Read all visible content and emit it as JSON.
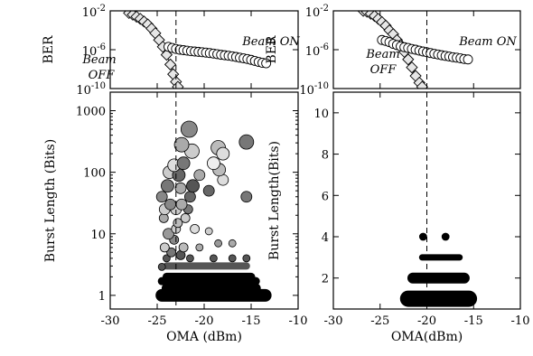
{
  "chart_data": [
    {
      "panel": "left-top",
      "type": "line",
      "ylabel": "BER",
      "yscale": "log",
      "xlim": [
        -30,
        -10
      ],
      "ylim": [
        1e-10,
        0.01
      ],
      "yticks": [
        1e-10,
        1e-06,
        0.01
      ],
      "ytick_labels": [
        {
          "base": "10",
          "exp": "-10"
        },
        {
          "base": "10",
          "exp": "-6"
        },
        {
          "base": "10",
          "exp": "-2"
        }
      ],
      "threshold_x": -23,
      "annotations": [
        "Beam ON",
        "Beam",
        "OFF"
      ],
      "series": [
        {
          "marker": "diamond",
          "x": [
            -28,
            -27.6,
            -27.2,
            -26.8,
            -26.4,
            -26,
            -25.6,
            -25.2,
            -24.8,
            -24.4,
            -24,
            -23.6,
            -23.3,
            -23,
            -22.8
          ],
          "y": [
            0.006,
            0.004,
            0.0025,
            0.0015,
            0.0008,
            0.0004,
            0.00015,
            5e-05,
            1e-05,
            2e-06,
            3e-07,
            3e-08,
            3e-09,
            5e-10,
            1.5e-10
          ]
        },
        {
          "marker": "circle",
          "x": [
            -23.8,
            -23.4,
            -23,
            -22.6,
            -22.2,
            -21.8,
            -21.4,
            -21,
            -20.6,
            -20.2,
            -19.8,
            -19.4,
            -19,
            -18.6,
            -18.2,
            -17.8,
            -17.4,
            -17,
            -16.6,
            -16.2,
            -15.8,
            -15.4,
            -15,
            -14.6,
            -14.2,
            -13.8,
            -13.4
          ],
          "y": [
            2e-06,
            1.5e-06,
            1.2e-06,
            1e-06,
            9e-07,
            8e-07,
            7e-07,
            6.5e-07,
            6e-07,
            5.5e-07,
            5e-07,
            4.5e-07,
            4e-07,
            3.5e-07,
            3e-07,
            2.7e-07,
            2.4e-07,
            2.1e-07,
            1.8e-07,
            1.5e-07,
            1.3e-07,
            1.1e-07,
            9e-08,
            7e-08,
            5.5e-08,
            4.5e-08,
            4e-08
          ]
        }
      ]
    },
    {
      "panel": "left-bottom",
      "type": "scatter",
      "xlabel": "OMA (dBm)",
      "ylabel": "Burst Length (Bits)",
      "yscale": "log",
      "xlim": [
        -30,
        -10
      ],
      "ylim": [
        0.6,
        2000
      ],
      "xticks": [
        -30,
        -25,
        -20,
        -15,
        -10
      ],
      "yticks": [
        1,
        10,
        100,
        1000
      ],
      "ytick_labels": [
        "1",
        "10",
        "100",
        "1000"
      ],
      "threshold_x": -23,
      "bands": [
        {
          "y": 1,
          "x0": -24.5,
          "x1": -13.5,
          "h": 14,
          "color": "#000000"
        },
        {
          "y": 1.3,
          "x0": -24,
          "x1": -14.5,
          "h": 11,
          "color": "#000000"
        },
        {
          "y": 1.7,
          "x0": -24.5,
          "x1": -14.5,
          "h": 9,
          "color": "#000000"
        },
        {
          "y": 2,
          "x0": -24,
          "x1": -15,
          "h": 9,
          "color": "#000000"
        },
        {
          "y": 3,
          "x0": -24,
          "x1": -15.5,
          "h": 8,
          "color": "#555555"
        }
      ],
      "points": [
        {
          "x": -24.5,
          "y": 2.9,
          "r": 4,
          "c": "#555555"
        },
        {
          "x": -24,
          "y": 4,
          "r": 4,
          "c": "#555555"
        },
        {
          "x": -23.5,
          "y": 5,
          "r": 5,
          "c": "#777777"
        },
        {
          "x": -22.5,
          "y": 4.5,
          "r": 5,
          "c": "#555555"
        },
        {
          "x": -21.5,
          "y": 4,
          "r": 4,
          "c": "#555555"
        },
        {
          "x": -19,
          "y": 4,
          "r": 4,
          "c": "#555555"
        },
        {
          "x": -17,
          "y": 4,
          "r": 4,
          "c": "#555555"
        },
        {
          "x": -15.5,
          "y": 4,
          "r": 4,
          "c": "#555555"
        },
        {
          "x": -24.2,
          "y": 6,
          "r": 5,
          "c": "#cccccc"
        },
        {
          "x": -23.2,
          "y": 8,
          "r": 5,
          "c": "#888888"
        },
        {
          "x": -22.2,
          "y": 6,
          "r": 5,
          "c": "#bbbbbb"
        },
        {
          "x": -20.5,
          "y": 6,
          "r": 4,
          "c": "#aaaaaa"
        },
        {
          "x": -18.5,
          "y": 7,
          "r": 4,
          "c": "#999999"
        },
        {
          "x": -23.8,
          "y": 10,
          "r": 6,
          "c": "#999999"
        },
        {
          "x": -23,
          "y": 12,
          "r": 5,
          "c": "#cccccc"
        },
        {
          "x": -21,
          "y": 12,
          "r": 5,
          "c": "#dddddd"
        },
        {
          "x": -19.5,
          "y": 11,
          "r": 4,
          "c": "#cccccc"
        },
        {
          "x": -17,
          "y": 7,
          "r": 4,
          "c": "#aaaaaa"
        },
        {
          "x": -22.8,
          "y": 15,
          "r": 5,
          "c": "#bbbbbb"
        },
        {
          "x": -24.3,
          "y": 18,
          "r": 5,
          "c": "#aaaaaa"
        },
        {
          "x": -22,
          "y": 18,
          "r": 5,
          "c": "#cccccc"
        },
        {
          "x": -21.7,
          "y": 25,
          "r": 5,
          "c": "#777777"
        },
        {
          "x": -24.2,
          "y": 25,
          "r": 6,
          "c": "#cccccc"
        },
        {
          "x": -23,
          "y": 25,
          "r": 6,
          "c": "#cccccc"
        },
        {
          "x": -23.6,
          "y": 30,
          "r": 6,
          "c": "#888888"
        },
        {
          "x": -22.4,
          "y": 30,
          "r": 6,
          "c": "#aaaaaa"
        },
        {
          "x": -21.5,
          "y": 40,
          "r": 6,
          "c": "#666666"
        },
        {
          "x": -24.5,
          "y": 40,
          "r": 6,
          "c": "#888888"
        },
        {
          "x": -23.9,
          "y": 60,
          "r": 7,
          "c": "#777777"
        },
        {
          "x": -22.5,
          "y": 55,
          "r": 6,
          "c": "#aaaaaa"
        },
        {
          "x": -21.2,
          "y": 60,
          "r": 7,
          "c": "#555555"
        },
        {
          "x": -19.5,
          "y": 50,
          "r": 6,
          "c": "#666666"
        },
        {
          "x": -18,
          "y": 75,
          "r": 6,
          "c": "#dddddd"
        },
        {
          "x": -15.5,
          "y": 40,
          "r": 6,
          "c": "#777777"
        },
        {
          "x": -23.7,
          "y": 100,
          "r": 7,
          "c": "#cccccc"
        },
        {
          "x": -22.7,
          "y": 90,
          "r": 7,
          "c": "#666666"
        },
        {
          "x": -20.5,
          "y": 90,
          "r": 6,
          "c": "#aaaaaa"
        },
        {
          "x": -18.4,
          "y": 110,
          "r": 7,
          "c": "#bbbbbb"
        },
        {
          "x": -23.2,
          "y": 130,
          "r": 7,
          "c": "#dddddd"
        },
        {
          "x": -22.2,
          "y": 140,
          "r": 7,
          "c": "#777777"
        },
        {
          "x": -19,
          "y": 140,
          "r": 7,
          "c": "#eeeeee"
        },
        {
          "x": -21.3,
          "y": 220,
          "r": 8,
          "c": "#cccccc"
        },
        {
          "x": -18.5,
          "y": 250,
          "r": 8,
          "c": "#bbbbbb"
        },
        {
          "x": -18,
          "y": 200,
          "r": 7,
          "c": "#dddddd"
        },
        {
          "x": -22.4,
          "y": 280,
          "r": 8,
          "c": "#aaaaaa"
        },
        {
          "x": -15.5,
          "y": 310,
          "r": 8,
          "c": "#777777"
        },
        {
          "x": -21.6,
          "y": 500,
          "r": 9,
          "c": "#888888"
        }
      ]
    },
    {
      "panel": "right-top",
      "type": "line",
      "ylabel": "BER",
      "yscale": "log",
      "xlim": [
        -30,
        -10
      ],
      "ylim": [
        1e-10,
        0.01
      ],
      "yticks": [
        1e-10,
        1e-06,
        0.01
      ],
      "ytick_labels": [
        {
          "base": "10",
          "exp": "-10"
        },
        {
          "base": "10",
          "exp": "-6"
        },
        {
          "base": "10",
          "exp": "-2"
        }
      ],
      "threshold_x": -20,
      "annotations": [
        "Beam ON",
        "Beam",
        "OFF"
      ],
      "series": [
        {
          "marker": "diamond",
          "x": [
            -26.8,
            -26.4,
            -26,
            -25.6,
            -25.2,
            -24.8,
            -24.4,
            -24,
            -23.6,
            -23.2,
            -22.8,
            -22.4,
            -22,
            -21.6,
            -21.2,
            -20.8,
            -20.5
          ],
          "y": [
            0.01,
            0.008,
            0.005,
            0.003,
            0.0015,
            0.0007,
            0.0003,
            0.0001,
            4e-05,
            1e-05,
            3e-06,
            6e-07,
            1e-07,
            1.5e-08,
            2e-09,
            4e-10,
            1.5e-10
          ]
        },
        {
          "marker": "circle",
          "x": [
            -24.8,
            -24.4,
            -24,
            -23.6,
            -23.2,
            -22.8,
            -22.4,
            -22,
            -21.6,
            -21.2,
            -20.8,
            -20.4,
            -20,
            -19.6,
            -19.2,
            -18.8,
            -18.4,
            -18,
            -17.6,
            -17.2,
            -16.8,
            -16.4,
            -16,
            -15.6
          ],
          "y": [
            1e-05,
            8e-06,
            6e-06,
            4e-06,
            3e-06,
            2.2e-06,
            1.8e-06,
            1.5e-06,
            1.2e-06,
            1e-06,
            8e-07,
            6.5e-07,
            5.5e-07,
            4.5e-07,
            3.8e-07,
            3.2e-07,
            2.7e-07,
            2.3e-07,
            2e-07,
            1.7e-07,
            1.5e-07,
            1.3e-07,
            1.1e-07,
            1e-07
          ]
        }
      ]
    },
    {
      "panel": "right-bottom",
      "type": "scatter",
      "xlabel": "OMA(dBm)",
      "ylabel": "Burst Length(Bits)",
      "xlim": [
        -30,
        -10
      ],
      "ylim": [
        0.5,
        11
      ],
      "xticks": [
        -30,
        -25,
        -20,
        -15,
        -10
      ],
      "yticks": [
        2,
        4,
        6,
        8,
        10
      ],
      "ytick_labels": [
        "2",
        "4",
        "6",
        "8",
        "10"
      ],
      "threshold_x": -20,
      "bands": [
        {
          "y": 1,
          "x0": -22,
          "x1": -15.5,
          "h": 18,
          "color": "#000000"
        },
        {
          "y": 2,
          "x0": -21.5,
          "x1": -16,
          "h": 12,
          "color": "#000000"
        },
        {
          "y": 3,
          "x0": -20.5,
          "x1": -16.5,
          "h": 7,
          "color": "#000000"
        }
      ],
      "points": [
        {
          "x": -20.4,
          "y": 4,
          "r": 4,
          "c": "#000000"
        },
        {
          "x": -18,
          "y": 4,
          "r": 4,
          "c": "#000000"
        }
      ]
    }
  ]
}
